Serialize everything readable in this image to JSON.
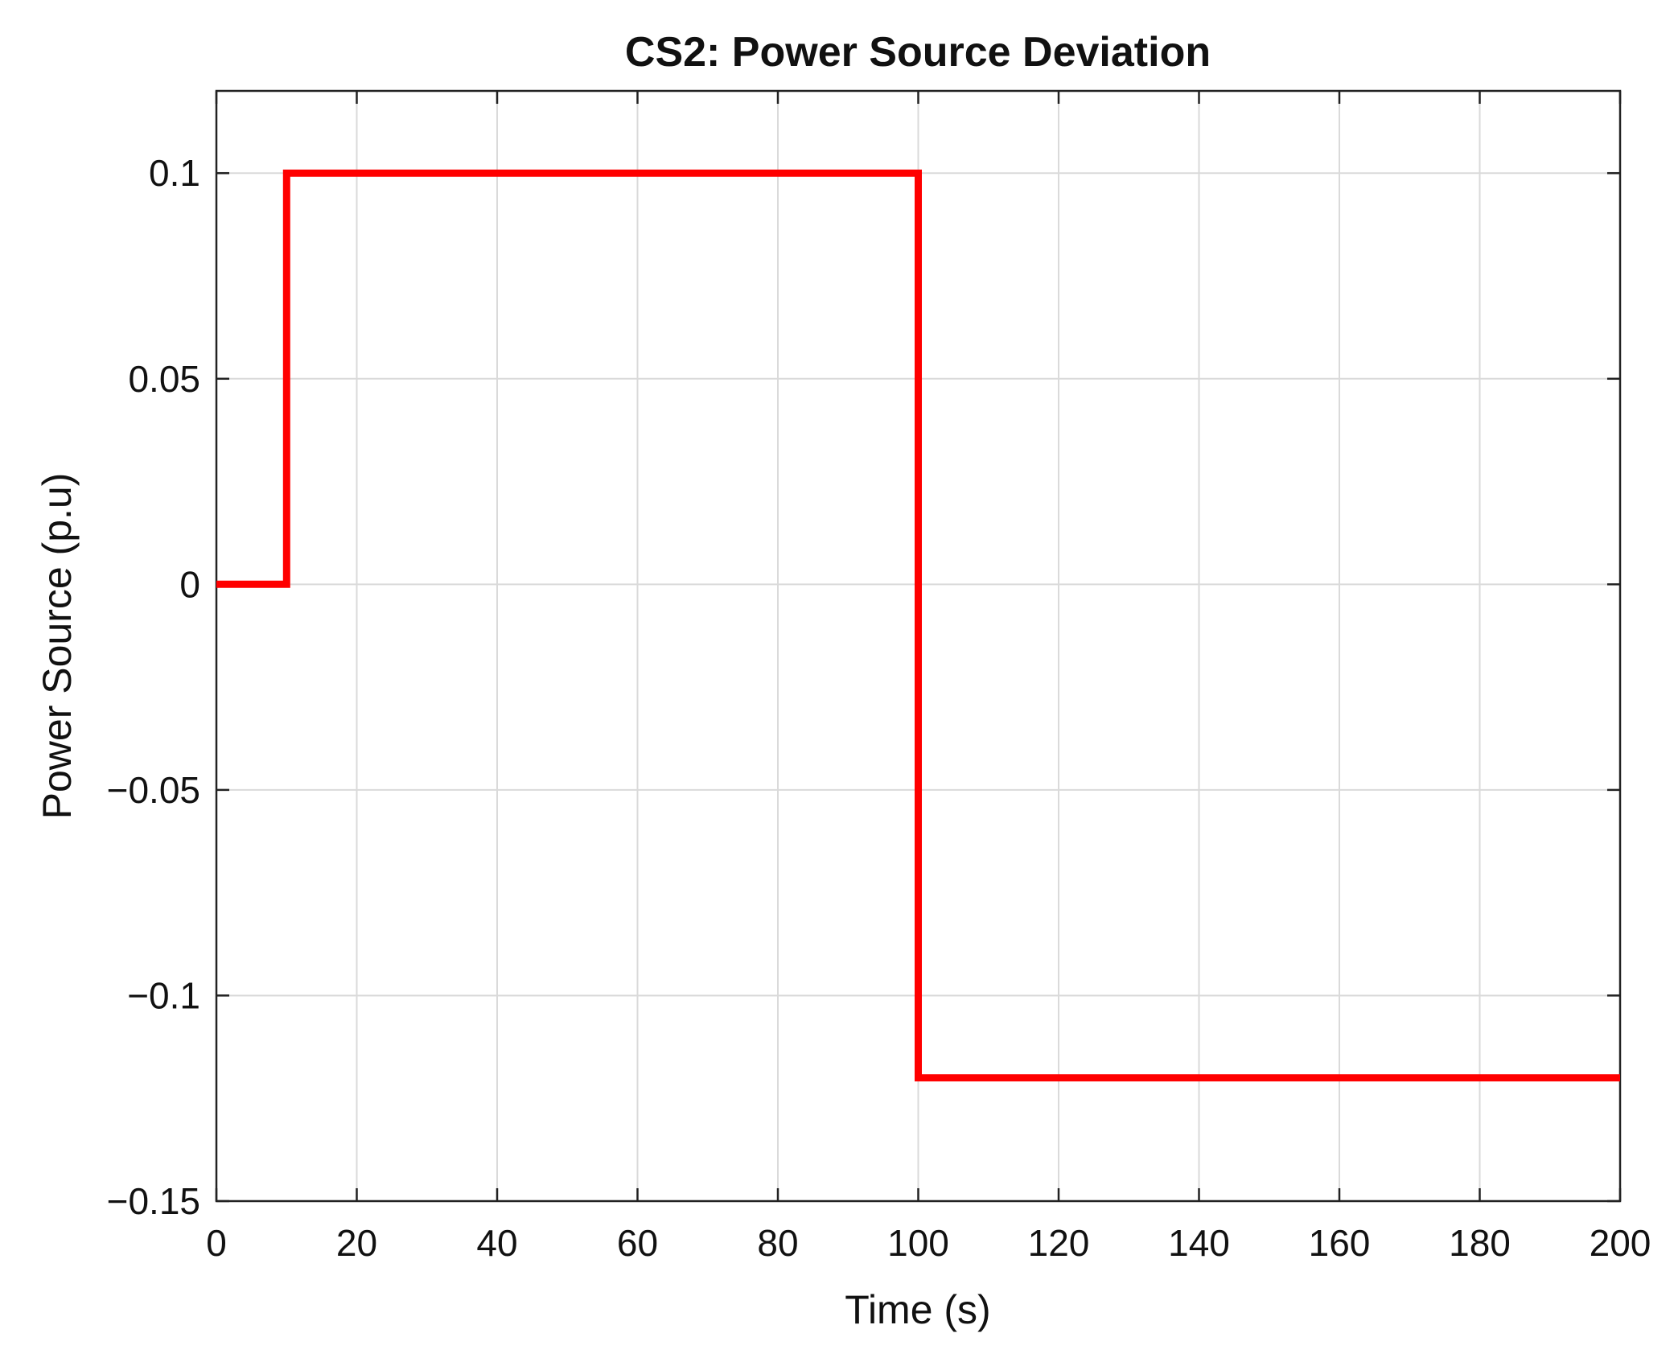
{
  "chart_data": {
    "type": "line",
    "title": "CS2: Power Source Deviation",
    "xlabel": "Time (s)",
    "ylabel": "Power Source (p.u)",
    "xlim": [
      0,
      200
    ],
    "ylim": [
      -0.15,
      0.12
    ],
    "xticks": [
      0,
      20,
      40,
      60,
      80,
      100,
      120,
      140,
      160,
      180,
      200
    ],
    "xtick_labels": [
      "0",
      "20",
      "40",
      "60",
      "80",
      "100",
      "120",
      "140",
      "160",
      "180",
      "200"
    ],
    "yticks": [
      -0.15,
      -0.1,
      -0.05,
      0,
      0.05,
      0.1
    ],
    "ytick_labels": [
      "−0.15",
      "−0.1",
      "−0.05",
      "0",
      "0.05",
      "0.1"
    ],
    "grid": true,
    "legend": "none",
    "series": [
      {
        "color": "#ff0000",
        "step": true,
        "x": [
          0,
          10,
          10,
          100,
          100,
          200
        ],
        "y": [
          0,
          0,
          0.1,
          0.1,
          -0.12,
          -0.12
        ]
      }
    ]
  }
}
